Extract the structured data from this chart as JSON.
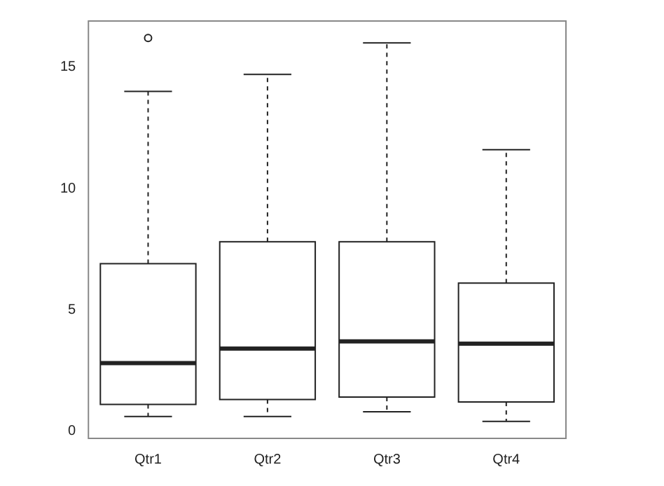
{
  "chart_data": {
    "type": "box",
    "categories": [
      "Qtr1",
      "Qtr2",
      "Qtr3",
      "Qtr4"
    ],
    "boxes": [
      {
        "low": 0.6,
        "q1": 1.1,
        "median": 2.8,
        "q3": 6.9,
        "high": 14.0,
        "outliers": [
          16.2
        ]
      },
      {
        "low": 0.6,
        "q1": 1.3,
        "median": 3.4,
        "q3": 7.8,
        "high": 14.7
      },
      {
        "low": 0.8,
        "q1": 1.4,
        "median": 3.7,
        "q3": 7.8,
        "high": 16.0
      },
      {
        "low": 0.4,
        "q1": 1.2,
        "median": 3.6,
        "q3": 6.1,
        "high": 11.6
      }
    ],
    "color": "#222222",
    "ylim": [
      -0.3,
      16.9
    ],
    "yticks": [
      0,
      5,
      10,
      15
    ],
    "grid": false,
    "legend": false
  }
}
